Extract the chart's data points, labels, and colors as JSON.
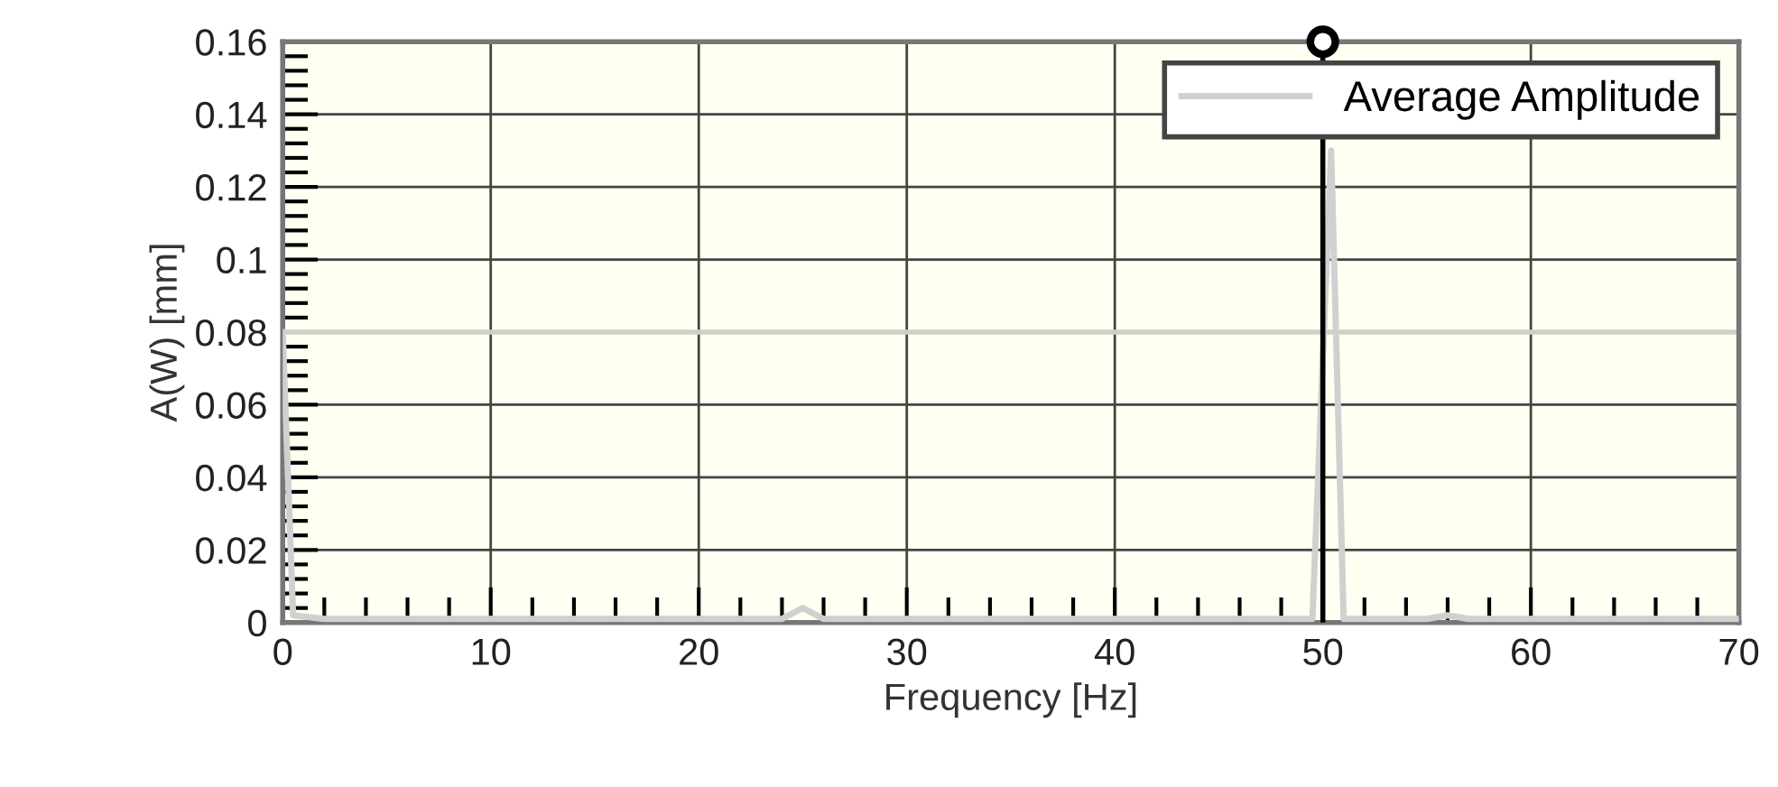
{
  "chart_data": {
    "type": "line",
    "xlabel": "Frequency [Hz]",
    "ylabel": "A(W) [mm]",
    "x": [
      0,
      0.5,
      2,
      10,
      24,
      25,
      26,
      49.5,
      50.4,
      51,
      55,
      56,
      57,
      70
    ],
    "series": [
      {
        "name": "Average Amplitude",
        "color": "#d0d0d0",
        "values": [
          0.08,
          0.002,
          0.001,
          0.001,
          0.001,
          0.004,
          0.001,
          0.001,
          0.13,
          0.001,
          0.001,
          0.002,
          0.001,
          0.001
        ]
      }
    ],
    "xlim": [
      0,
      70
    ],
    "xticks": [
      0,
      10,
      20,
      30,
      40,
      50,
      60,
      70
    ],
    "ylim": [
      0,
      0.16
    ],
    "yticks": [
      0,
      0.02,
      0.04,
      0.06,
      0.08,
      0.1,
      0.12,
      0.14,
      0.16
    ],
    "ref_lines": [
      {
        "axis": "y",
        "value": 0.08,
        "color": "#cfcfc4"
      },
      {
        "axis": "x",
        "value": 50,
        "color": "#000000"
      }
    ],
    "grid": true,
    "legend": "top right",
    "marker": "none",
    "line_style": "solid"
  }
}
